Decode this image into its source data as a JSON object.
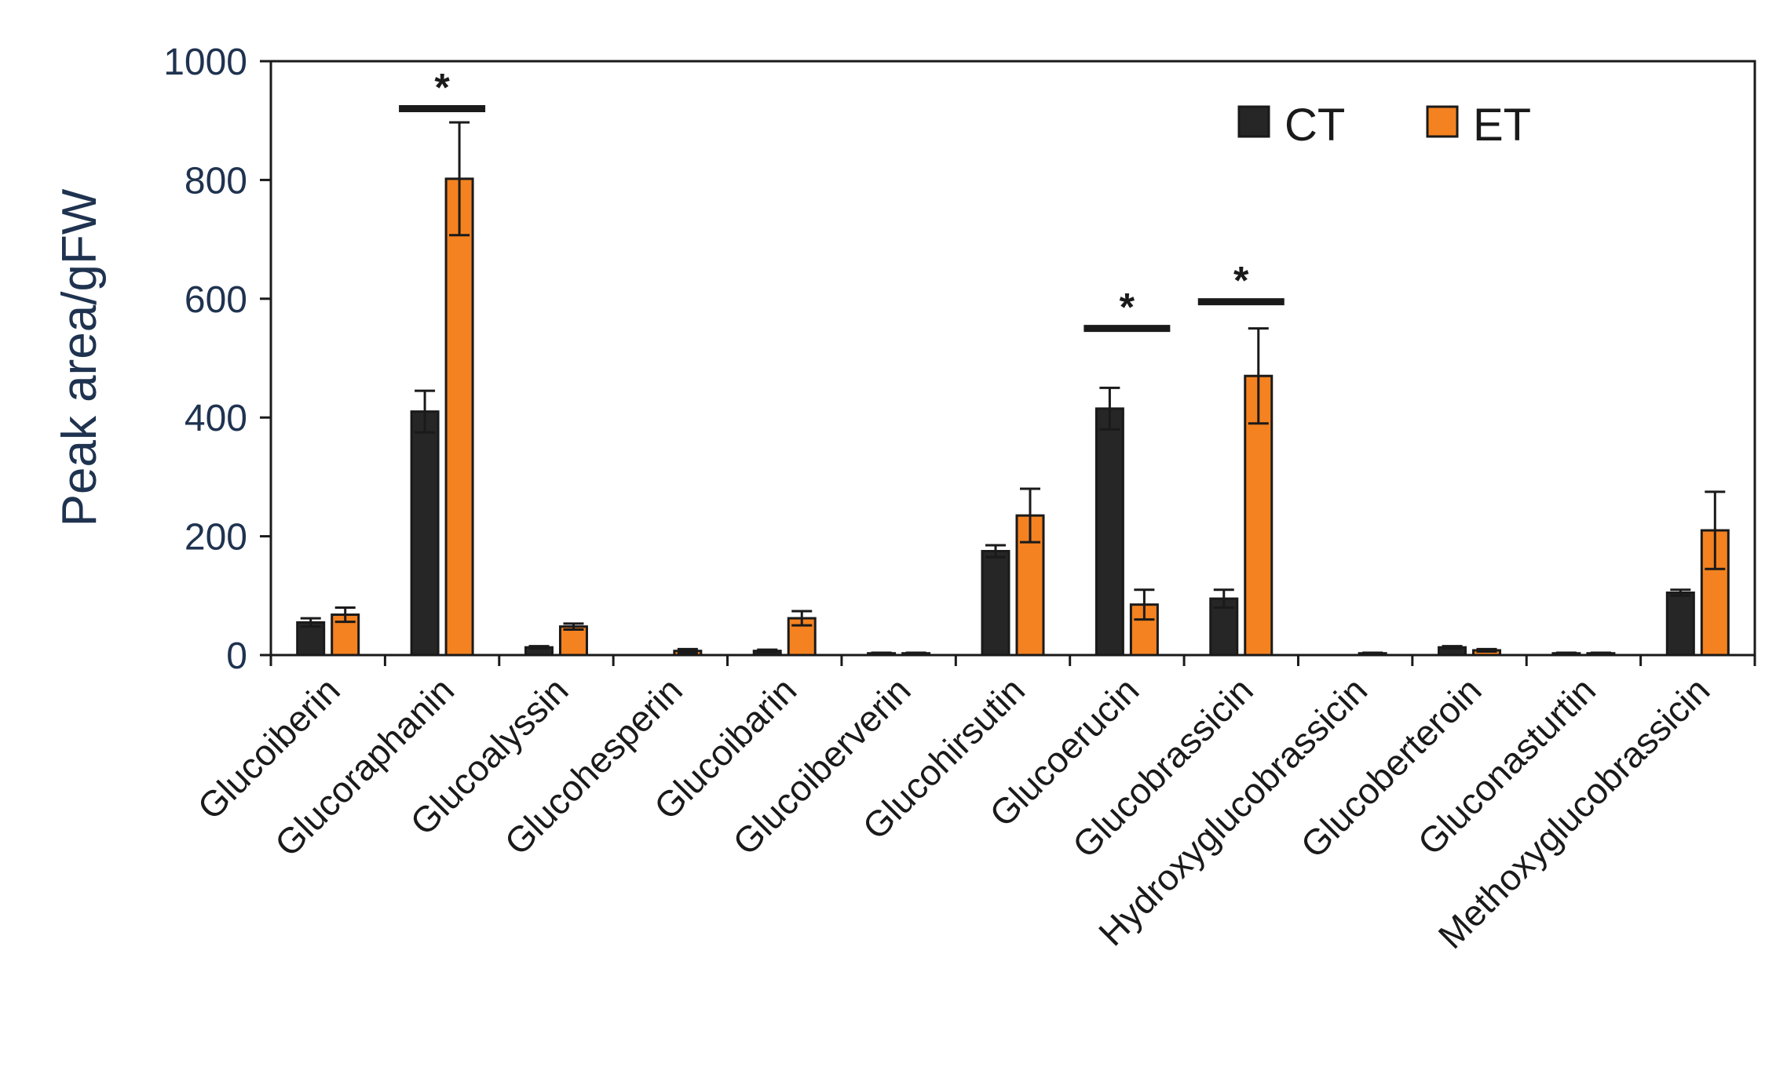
{
  "chart_data": {
    "type": "bar",
    "title": "",
    "xlabel": "",
    "ylabel": "Peak area/gFW",
    "ylim": [
      0,
      1000
    ],
    "yticks": [
      0,
      200,
      400,
      600,
      800,
      1000
    ],
    "grid": false,
    "legend_position": "top-right",
    "categories": [
      "Glucoiberin",
      "Glucoraphanin",
      "Glucoalyssin",
      "Glucohesperin",
      "Glucoibarin",
      "Glucoiberverin",
      "Glucohirsutin",
      "Glucoerucin",
      "Glucobrassicin",
      "Hydroxyglucobrassicin",
      "Glucoberteroin",
      "Gluconasturtin",
      "Methoxyglucobrassicin"
    ],
    "series": [
      {
        "name": "CT",
        "color": "#262626",
        "values": [
          55,
          410,
          13,
          0,
          7,
          3,
          175,
          415,
          95,
          0,
          13,
          3,
          105
        ],
        "errors": [
          7,
          35,
          2,
          0,
          2,
          1,
          10,
          35,
          15,
          0,
          2,
          1,
          5
        ]
      },
      {
        "name": "ET",
        "color": "#f58220",
        "values": [
          68,
          802,
          48,
          7,
          62,
          3,
          235,
          85,
          470,
          3,
          8,
          3,
          210
        ],
        "errors": [
          12,
          95,
          5,
          3,
          12,
          1,
          45,
          25,
          80,
          1,
          2,
          1,
          65
        ]
      }
    ],
    "significance": [
      {
        "category_index": 1,
        "label": "*",
        "level": 920
      },
      {
        "category_index": 7,
        "label": "*",
        "level": 550
      },
      {
        "category_index": 8,
        "label": "*",
        "level": 595
      }
    ]
  }
}
